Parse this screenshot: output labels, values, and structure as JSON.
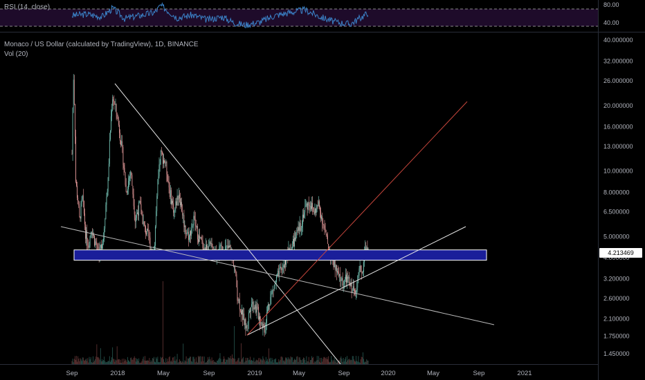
{
  "rsi_pane": {
    "legend": "RSI (14, close)",
    "upper_band": 70,
    "lower_band": 30,
    "ticks": [
      "80.00",
      "40.00"
    ],
    "colors": {
      "band_fill": "#1e0b2a",
      "line": "#3b83c9",
      "dashed": "#8a8a8a"
    }
  },
  "main_pane": {
    "symbol_legend": "Monaco / US Dollar (calculated by TradingView), 1D, BINANCE",
    "volume_legend": "Vol (20)",
    "price_ticks": [
      "40.000000",
      "32.000000",
      "26.000000",
      "20.000000",
      "16.000000",
      "13.000000",
      "10.000000",
      "8.000000",
      "6.500000",
      "5.000000",
      "4.000000",
      "3.200000",
      "2.600000",
      "2.100000",
      "1.750000",
      "1.450000"
    ],
    "last_price": "4.213469",
    "colors": {
      "up": "#7ed3c4",
      "down": "#f0a2a2",
      "zone_fill": "#1a1e9a",
      "zone_border": "#ffffff",
      "trendline": "#e6e6e6",
      "red_trendline": "#c8463c",
      "axis_text": "#b2b5be",
      "last_price_bg": "#ffffff",
      "last_price_text": "#000000"
    }
  },
  "time_axis": {
    "labels": [
      "Sep",
      "2018",
      "May",
      "Sep",
      "2019",
      "May",
      "Sep",
      "2020",
      "May",
      "Sep",
      "2021"
    ]
  },
  "chart_data": {
    "type": "candlestick",
    "price_scale": "log",
    "ylim": [
      1.3,
      40
    ],
    "support_zone": [
      3.9,
      4.35
    ],
    "rsi_range": [
      0,
      100
    ],
    "anchors": [
      {
        "t": 0,
        "p": 12
      },
      {
        "t": 2,
        "p": 27
      },
      {
        "t": 5,
        "p": 9
      },
      {
        "t": 10,
        "p": 6
      },
      {
        "t": 14,
        "p": 7.5
      },
      {
        "t": 18,
        "p": 5.2
      },
      {
        "t": 22,
        "p": 4.6
      },
      {
        "t": 26,
        "p": 5.5
      },
      {
        "t": 30,
        "p": 4.8
      },
      {
        "t": 36,
        "p": 4.2
      },
      {
        "t": 42,
        "p": 5
      },
      {
        "t": 48,
        "p": 9
      },
      {
        "t": 54,
        "p": 22
      },
      {
        "t": 60,
        "p": 18
      },
      {
        "t": 66,
        "p": 13
      },
      {
        "t": 72,
        "p": 8
      },
      {
        "t": 78,
        "p": 10
      },
      {
        "t": 84,
        "p": 6
      },
      {
        "t": 90,
        "p": 7
      },
      {
        "t": 96,
        "p": 5.5
      },
      {
        "t": 102,
        "p": 5
      },
      {
        "t": 106,
        "p": 4.2
      },
      {
        "t": 110,
        "p": 4.6
      },
      {
        "t": 118,
        "p": 12
      },
      {
        "t": 124,
        "p": 11
      },
      {
        "t": 130,
        "p": 8
      },
      {
        "t": 136,
        "p": 6.5
      },
      {
        "t": 142,
        "p": 8
      },
      {
        "t": 150,
        "p": 5.5
      },
      {
        "t": 156,
        "p": 5
      },
      {
        "t": 162,
        "p": 6
      },
      {
        "t": 168,
        "p": 5
      },
      {
        "t": 176,
        "p": 4.4
      },
      {
        "t": 184,
        "p": 4.5
      },
      {
        "t": 192,
        "p": 4.2
      },
      {
        "t": 200,
        "p": 4.4
      },
      {
        "t": 210,
        "p": 4.4
      },
      {
        "t": 216,
        "p": 3.7
      },
      {
        "t": 220,
        "p": 2.7
      },
      {
        "t": 226,
        "p": 2.2
      },
      {
        "t": 232,
        "p": 1.9
      },
      {
        "t": 238,
        "p": 2.5
      },
      {
        "t": 244,
        "p": 2.4
      },
      {
        "t": 250,
        "p": 2.1
      },
      {
        "t": 256,
        "p": 1.9
      },
      {
        "t": 262,
        "p": 2.5
      },
      {
        "t": 268,
        "p": 2.9
      },
      {
        "t": 274,
        "p": 3.3
      },
      {
        "t": 280,
        "p": 3.6
      },
      {
        "t": 286,
        "p": 4.1
      },
      {
        "t": 292,
        "p": 4.5
      },
      {
        "t": 298,
        "p": 5
      },
      {
        "t": 304,
        "p": 5.6
      },
      {
        "t": 310,
        "p": 6.8
      },
      {
        "t": 316,
        "p": 7.2
      },
      {
        "t": 322,
        "p": 6.5
      },
      {
        "t": 328,
        "p": 7
      },
      {
        "t": 334,
        "p": 5.8
      },
      {
        "t": 338,
        "p": 5
      },
      {
        "t": 342,
        "p": 4.3
      },
      {
        "t": 348,
        "p": 3.8
      },
      {
        "t": 354,
        "p": 3.3
      },
      {
        "t": 360,
        "p": 3.1
      },
      {
        "t": 366,
        "p": 3.2
      },
      {
        "t": 372,
        "p": 2.9
      },
      {
        "t": 376,
        "p": 2.8
      },
      {
        "t": 380,
        "p": 3.2
      },
      {
        "t": 384,
        "p": 3.6
      },
      {
        "t": 386,
        "p": 3.4
      },
      {
        "t": 390,
        "p": 4.4
      },
      {
        "t": 394,
        "p": 4.21
      }
    ],
    "rsi_anchors": [
      {
        "t": 0,
        "v": 55
      },
      {
        "t": 20,
        "v": 58
      },
      {
        "t": 40,
        "v": 52
      },
      {
        "t": 54,
        "v": 72
      },
      {
        "t": 70,
        "v": 48
      },
      {
        "t": 90,
        "v": 55
      },
      {
        "t": 110,
        "v": 62
      },
      {
        "t": 118,
        "v": 78
      },
      {
        "t": 140,
        "v": 50
      },
      {
        "t": 160,
        "v": 56
      },
      {
        "t": 180,
        "v": 45
      },
      {
        "t": 200,
        "v": 52
      },
      {
        "t": 216,
        "v": 38
      },
      {
        "t": 230,
        "v": 33
      },
      {
        "t": 250,
        "v": 40
      },
      {
        "t": 270,
        "v": 55
      },
      {
        "t": 290,
        "v": 62
      },
      {
        "t": 310,
        "v": 68
      },
      {
        "t": 330,
        "v": 52
      },
      {
        "t": 350,
        "v": 40
      },
      {
        "t": 370,
        "v": 35
      },
      {
        "t": 386,
        "v": 52
      },
      {
        "t": 394,
        "v": 62
      }
    ]
  }
}
